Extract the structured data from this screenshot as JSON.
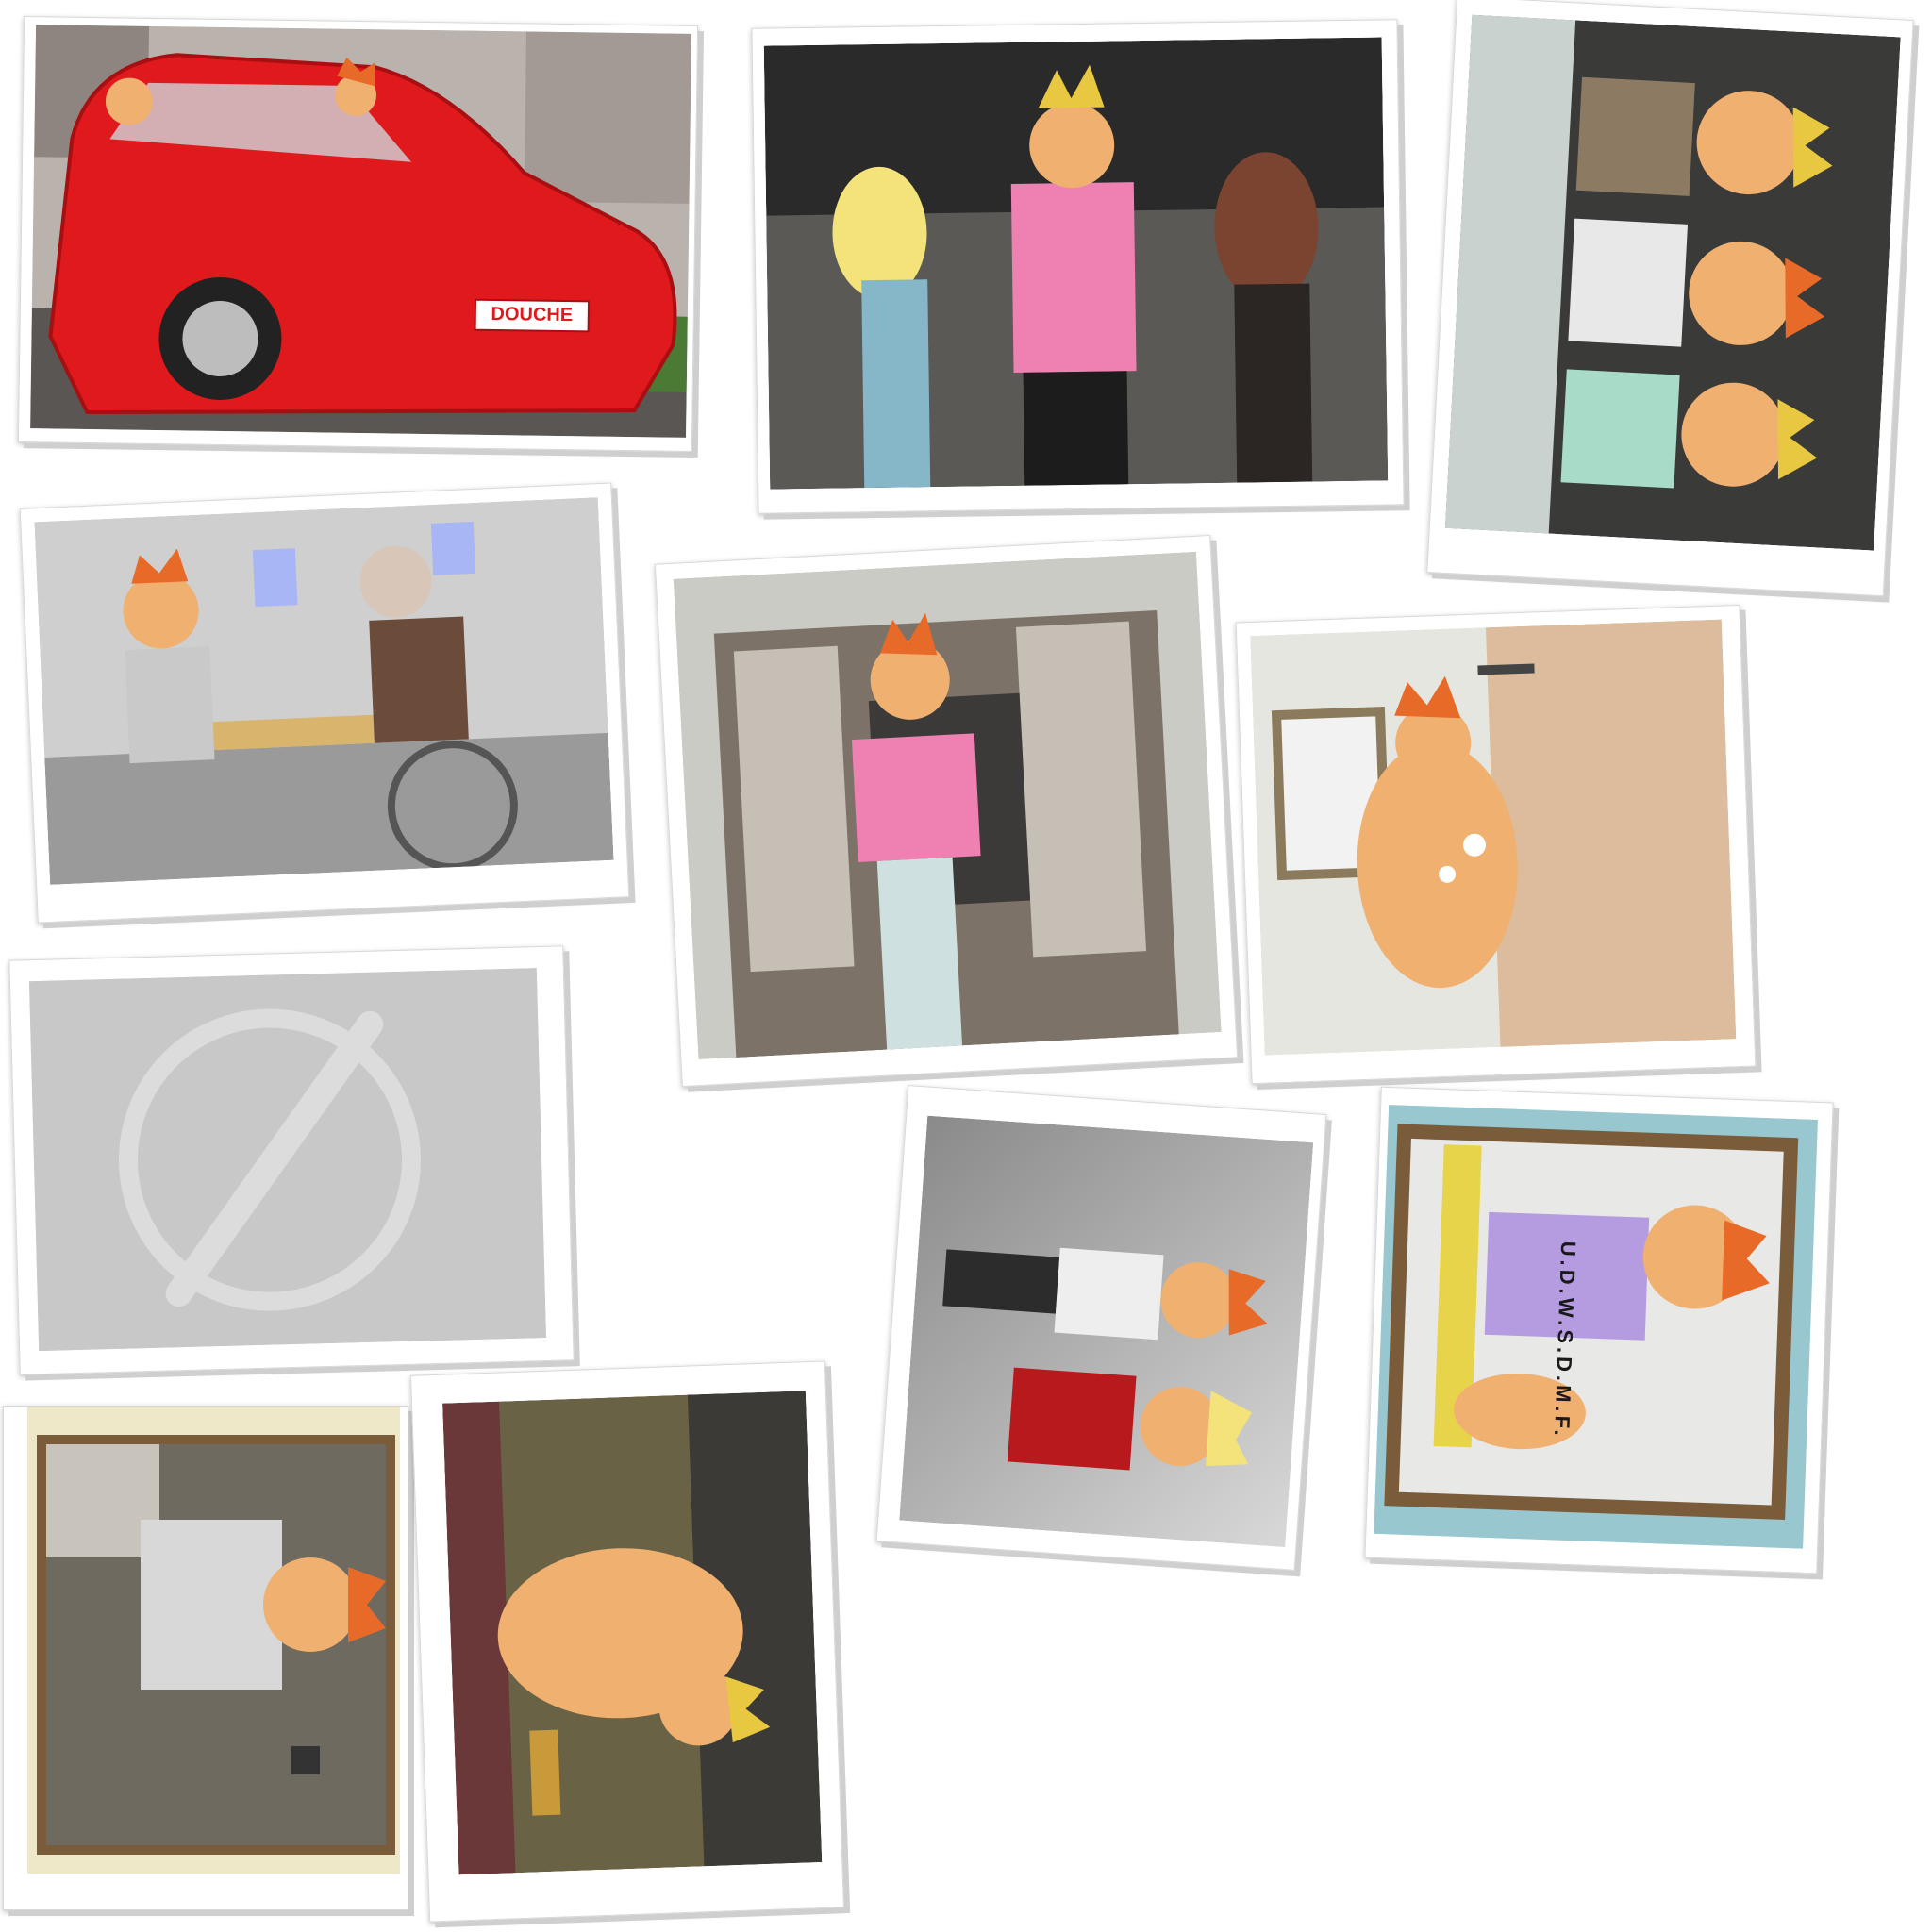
{
  "gallery": {
    "photos": [
      {
        "id": 1,
        "scene": "red car",
        "state": "unlocked",
        "text": "DOUCHE"
      },
      {
        "id": 2,
        "scene": "club with two girls",
        "state": "unlocked"
      },
      {
        "id": 3,
        "scene": "three friends",
        "state": "unlocked"
      },
      {
        "id": 4,
        "scene": "old man in wheelchair",
        "state": "unlocked"
      },
      {
        "id": 5,
        "scene": "pink shirt closet",
        "state": "unlocked"
      },
      {
        "id": 6,
        "scene": "shower",
        "state": "unlocked"
      },
      {
        "id": 7,
        "scene": "locked",
        "state": "locked"
      },
      {
        "id": 8,
        "scene": "guy with woman",
        "state": "unlocked"
      },
      {
        "id": 9,
        "scene": "mirror gym",
        "state": "unlocked",
        "text": "U.D.W.S.D.M.F."
      },
      {
        "id": 10,
        "scene": "bathroom selfie",
        "state": "unlocked"
      },
      {
        "id": 11,
        "scene": "bodybuilder trophy",
        "state": "unlocked"
      }
    ]
  },
  "colors": {
    "car_red": "#e0191c",
    "skin": "#f0b070",
    "hair": "#e86a28",
    "locked_gray": "#c8c8c8"
  }
}
